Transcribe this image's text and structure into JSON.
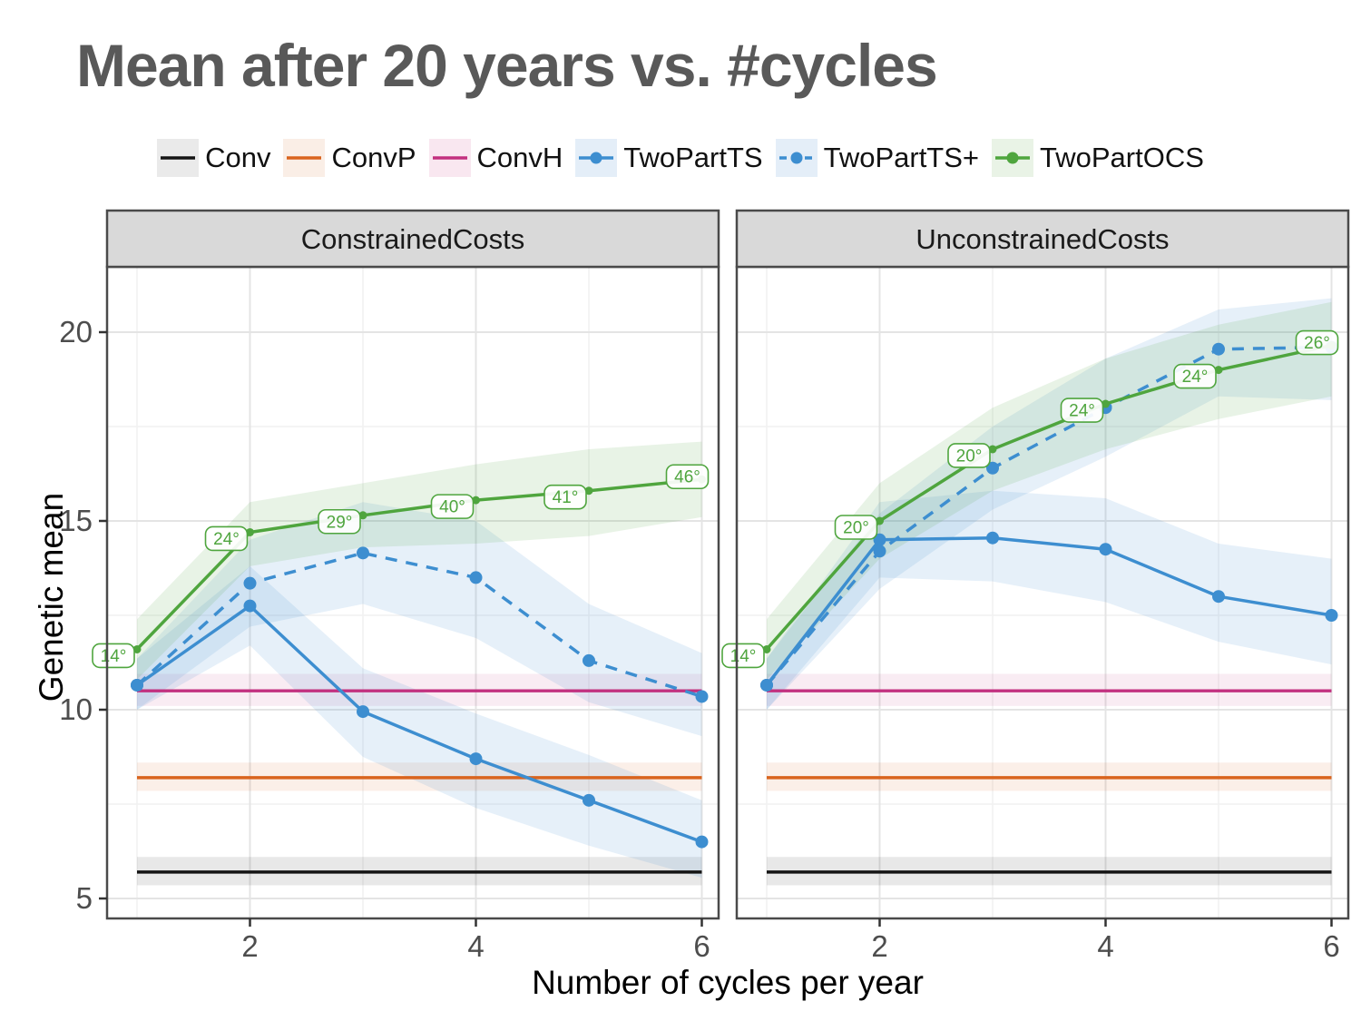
{
  "title": "Mean after 20 years vs. #cycles",
  "axes": {
    "x_label": "Number of cycles per year",
    "y_label": "Genetic mean",
    "x_ticks": [
      2,
      4,
      6
    ],
    "y_ticks": [
      20,
      15,
      10,
      5
    ]
  },
  "legend": [
    {
      "label": "Conv",
      "color": "#141414",
      "swatch": "#eaeaea",
      "dashed": false,
      "point": false
    },
    {
      "label": "ConvP",
      "color": "#d9641e",
      "swatch": "#faeee6",
      "dashed": false,
      "point": false
    },
    {
      "label": "ConvH",
      "color": "#c2307f",
      "swatch": "#f9e7f0",
      "dashed": false,
      "point": false
    },
    {
      "label": "TwoPartTS",
      "color": "#3d8ed0",
      "swatch": "#e4eef8",
      "dashed": false,
      "point": true
    },
    {
      "label": "TwoPartTS+",
      "color": "#3d8ed0",
      "swatch": "#e4eef8",
      "dashed": true,
      "point": true
    },
    {
      "label": "TwoPartOCS",
      "color": "#4fa53e",
      "swatch": "#e9f3e6",
      "dashed": false,
      "point": true
    }
  ],
  "chart_data": {
    "type": "line",
    "xlabel": "Number of cycles per year",
    "ylabel": "Genetic mean",
    "x": [
      1,
      2,
      3,
      4,
      5,
      6
    ],
    "x_ticks": [
      2,
      4,
      6
    ],
    "y_ticks": [
      20,
      15,
      10,
      5
    ],
    "xlim": [
      0.75,
      6.25
    ],
    "ylim": [
      4.5,
      21.7
    ],
    "grid": "major-and-minor",
    "legend_position": "top",
    "panels": [
      {
        "title": "ConstrainedCosts",
        "hlines": [
          {
            "name": "Conv",
            "value": 5.7,
            "band": [
              5.35,
              6.1
            ],
            "color": "#141414",
            "band_color": "rgba(0,0,0,0.09)"
          },
          {
            "name": "ConvP",
            "value": 8.2,
            "band": [
              7.85,
              8.6
            ],
            "color": "#d9641e",
            "band_color": "rgba(217,100,30,0.10)"
          },
          {
            "name": "ConvH",
            "value": 10.5,
            "band": [
              10.1,
              10.95
            ],
            "color": "#c2307f",
            "band_color": "rgba(194,48,127,0.09)"
          }
        ],
        "series": [
          {
            "name": "TwoPartTS",
            "style": "solid",
            "color": "#3d8ed0",
            "band_color": "rgba(62,142,208,0.13)",
            "values": [
              10.65,
              12.75,
              9.95,
              8.7,
              7.6,
              6.5
            ],
            "band_low": [
              10.0,
              11.7,
              8.75,
              7.4,
              6.4,
              5.55
            ],
            "band_high": [
              11.35,
              13.8,
              11.1,
              9.9,
              8.8,
              7.6
            ]
          },
          {
            "name": "TwoPartTS+",
            "style": "dashed",
            "color": "#3d8ed0",
            "band_color": "rgba(62,142,208,0.13)",
            "values": [
              10.65,
              13.35,
              14.15,
              13.5,
              11.3,
              10.35
            ],
            "band_low": [
              10.0,
              12.2,
              12.8,
              11.9,
              10.2,
              9.3
            ],
            "band_high": [
              11.35,
              14.5,
              15.5,
              15.0,
              12.8,
              11.5
            ]
          },
          {
            "name": "TwoPartOCS",
            "style": "solid",
            "color": "#4fa53e",
            "band_color": "rgba(79,165,62,0.13)",
            "values": [
              11.6,
              14.7,
              15.15,
              15.55,
              15.8,
              16.1
            ],
            "point_labels": [
              "14°",
              "24°",
              "29°",
              "40°",
              "41°",
              "46°"
            ],
            "band_low": [
              10.8,
              13.8,
              14.3,
              14.4,
              14.6,
              15.1
            ],
            "band_high": [
              12.4,
              15.5,
              16.0,
              16.5,
              16.9,
              17.1
            ]
          }
        ]
      },
      {
        "title": "UnconstrainedCosts",
        "hlines": [
          {
            "name": "Conv",
            "value": 5.7,
            "band": [
              5.35,
              6.1
            ],
            "color": "#141414",
            "band_color": "rgba(0,0,0,0.09)"
          },
          {
            "name": "ConvP",
            "value": 8.2,
            "band": [
              7.85,
              8.6
            ],
            "color": "#d9641e",
            "band_color": "rgba(217,100,30,0.10)"
          },
          {
            "name": "ConvH",
            "value": 10.5,
            "band": [
              10.1,
              10.95
            ],
            "color": "#c2307f",
            "band_color": "rgba(194,48,127,0.09)"
          }
        ],
        "series": [
          {
            "name": "TwoPartTS",
            "style": "solid",
            "color": "#3d8ed0",
            "band_color": "rgba(62,142,208,0.13)",
            "values": [
              10.65,
              14.5,
              14.55,
              14.25,
              13.0,
              12.5
            ],
            "band_low": [
              10.0,
              13.5,
              13.4,
              12.85,
              11.8,
              11.2
            ],
            "band_high": [
              11.35,
              15.5,
              15.8,
              15.6,
              14.4,
              14.0
            ]
          },
          {
            "name": "TwoPartTS+",
            "style": "dashed",
            "color": "#3d8ed0",
            "band_color": "rgba(62,142,208,0.13)",
            "values": [
              10.65,
              14.2,
              16.4,
              18.0,
              19.55,
              19.6
            ],
            "band_low": [
              10.0,
              13.2,
              15.3,
              16.7,
              18.3,
              18.2
            ],
            "band_high": [
              11.35,
              15.2,
              17.5,
              19.3,
              20.6,
              20.9
            ]
          },
          {
            "name": "TwoPartOCS",
            "style": "solid",
            "color": "#4fa53e",
            "band_color": "rgba(79,165,62,0.13)",
            "values": [
              11.6,
              15.0,
              16.9,
              18.1,
              19.0,
              19.65
            ],
            "point_labels": [
              "14°",
              "20°",
              "20°",
              "24°",
              "24°",
              "26°"
            ],
            "band_low": [
              10.8,
              14.0,
              15.8,
              16.9,
              17.7,
              18.3
            ],
            "band_high": [
              12.4,
              16.0,
              18.0,
              19.3,
              20.2,
              20.8
            ]
          }
        ]
      }
    ]
  }
}
